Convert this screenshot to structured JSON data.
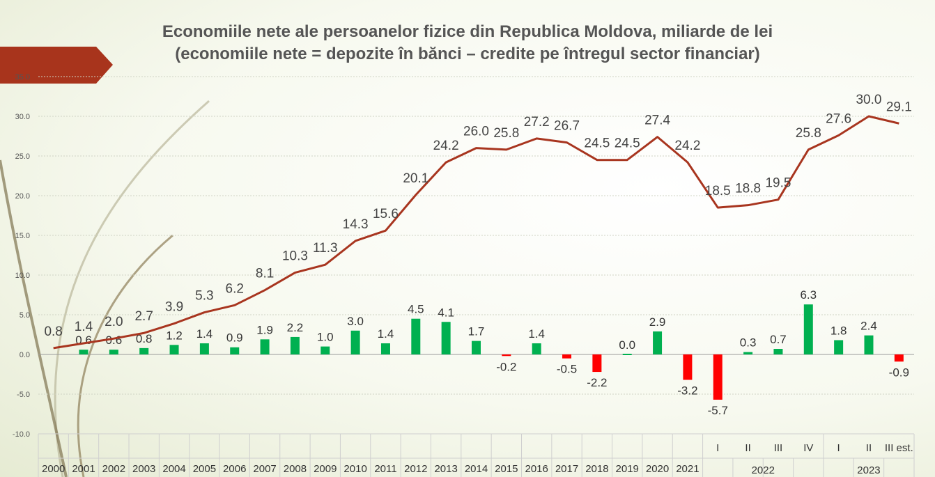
{
  "title_line1": "Economiile nete ale persoanelor fizice din Republica Moldova, miliarde de lei",
  "title_line2": "(economiile nete = depozite în bănci – credite pe întregul sector financiar)",
  "colors": {
    "line": "#a8351f",
    "bar_positive": "#00b050",
    "bar_negative": "#ff0000",
    "banner": "#a8341c"
  },
  "chart_data": {
    "type": "bar",
    "ylim": [
      -10,
      35
    ],
    "yticks": [
      "-10.0",
      "-5.0",
      "0.0",
      "5.0",
      "10.0",
      "15.0",
      "20.0",
      "25.0",
      "30.0",
      "35.0"
    ],
    "grid": true,
    "categories": [
      "2000",
      "2001",
      "2002",
      "2003",
      "2004",
      "2005",
      "2006",
      "2007",
      "2008",
      "2009",
      "2010",
      "2011",
      "2012",
      "2013",
      "2014",
      "2015",
      "2016",
      "2017",
      "2018",
      "2019",
      "2020",
      "2021",
      "I",
      "II",
      "III",
      "IV",
      "I",
      "II",
      "III est."
    ],
    "group_labels": [
      "2022",
      "2023"
    ],
    "series": [
      {
        "type": "line",
        "values": [
          0.8,
          1.4,
          2.0,
          2.7,
          3.9,
          5.3,
          6.2,
          8.1,
          10.3,
          11.3,
          14.3,
          15.6,
          20.1,
          24.2,
          26.0,
          25.8,
          27.2,
          26.7,
          24.5,
          24.5,
          27.4,
          24.2,
          18.5,
          18.8,
          19.5,
          25.8,
          27.6,
          30.0,
          29.1
        ],
        "labels": [
          "0.8",
          "1.4",
          "2.0",
          "2.7",
          "3.9",
          "5.3",
          "6.2",
          "8.1",
          "10.3",
          "11.3",
          "14.3",
          "15.6",
          "20.1",
          "24.2",
          "26.0",
          "25.8",
          "27.2",
          "26.7",
          "24.5",
          "24.5",
          "27.4",
          "24.2",
          "18.5",
          "18.8",
          "19.5",
          "25.8",
          "27.6",
          "30.0",
          "29.1"
        ]
      },
      {
        "type": "bar",
        "values": [
          null,
          0.6,
          0.6,
          0.8,
          1.2,
          1.4,
          0.9,
          1.9,
          2.2,
          1.0,
          3.0,
          1.4,
          4.5,
          4.1,
          1.7,
          -0.2,
          1.4,
          -0.5,
          -2.2,
          0.0,
          2.9,
          -3.2,
          -5.7,
          0.3,
          0.7,
          6.3,
          1.8,
          2.4,
          -0.9
        ],
        "labels": [
          "",
          "0.6",
          "0.6",
          "0.8",
          "1.2",
          "1.4",
          "0.9",
          "1.9",
          "2.2",
          "1.0",
          "3.0",
          "1.4",
          "4.5",
          "4.1",
          "1.7",
          "-0.2",
          "1.4",
          "-0.5",
          "-2.2",
          "0.0",
          "2.9",
          "-3.2",
          "-5.7",
          "0.3",
          "0.7",
          "6.3",
          "1.8",
          "2.4",
          "-0.9"
        ]
      }
    ]
  }
}
